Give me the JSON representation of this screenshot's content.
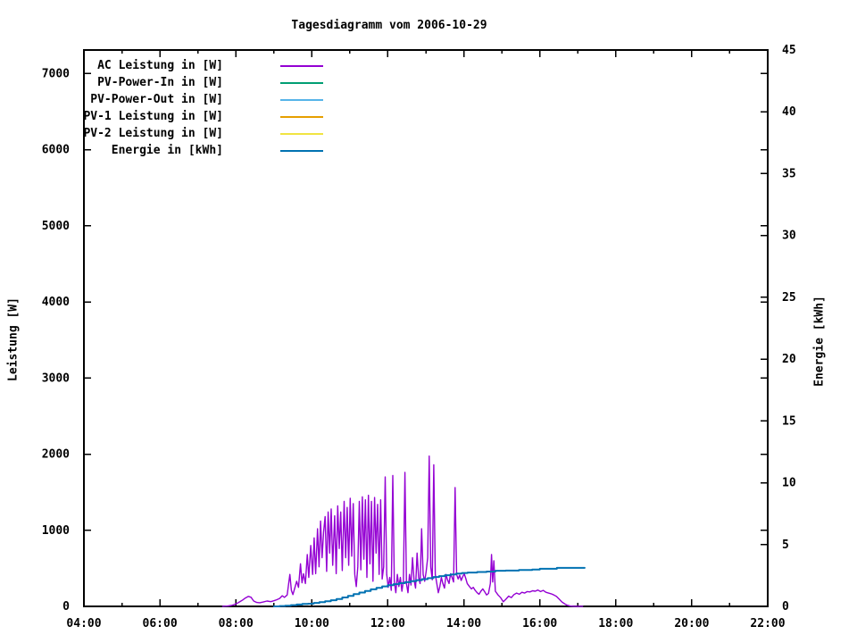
{
  "chart_data": {
    "type": "line",
    "title": "Tagesdiagramm vom 2006-10-29",
    "xlabel": "",
    "ylabel": "Leistung [W]",
    "y2label": "Energie [kWh]",
    "background_color": "#ffffff",
    "text_color": "#000000",
    "grid": false,
    "legend_position": "top-left-inside",
    "x_range_hours": [
      4,
      22
    ],
    "x_tick_hours": [
      4,
      6,
      8,
      10,
      12,
      14,
      16,
      18,
      20,
      22
    ],
    "x_tick_labels": [
      "04:00",
      "06:00",
      "08:00",
      "10:00",
      "12:00",
      "14:00",
      "16:00",
      "18:00",
      "20:00",
      "22:00"
    ],
    "x_minor_tick_hours": [
      5,
      7,
      9,
      11,
      13,
      15,
      17,
      19,
      21
    ],
    "y_range": [
      0,
      7310
    ],
    "y_ticks": [
      0,
      1000,
      2000,
      3000,
      4000,
      5000,
      6000,
      7000
    ],
    "y2_range": [
      0,
      45
    ],
    "y2_ticks": [
      0,
      5,
      10,
      15,
      20,
      25,
      30,
      35,
      40,
      45
    ],
    "series": [
      {
        "name": "AC Leistung in [W]",
        "color": "#9400d3",
        "axis": "y1",
        "style": "line",
        "points": [
          [
            7.65,
            0
          ],
          [
            7.72,
            2
          ],
          [
            7.8,
            6
          ],
          [
            7.88,
            12
          ],
          [
            7.95,
            22
          ],
          [
            8.02,
            38
          ],
          [
            8.1,
            60
          ],
          [
            8.18,
            85
          ],
          [
            8.25,
            110
          ],
          [
            8.33,
            132
          ],
          [
            8.4,
            120
          ],
          [
            8.47,
            70
          ],
          [
            8.55,
            52
          ],
          [
            8.63,
            48
          ],
          [
            8.72,
            58
          ],
          [
            8.82,
            70
          ],
          [
            8.92,
            62
          ],
          [
            9.0,
            74
          ],
          [
            9.08,
            88
          ],
          [
            9.15,
            105
          ],
          [
            9.22,
            140
          ],
          [
            9.28,
            118
          ],
          [
            9.35,
            150
          ],
          [
            9.42,
            420
          ],
          [
            9.46,
            210
          ],
          [
            9.5,
            155
          ],
          [
            9.55,
            240
          ],
          [
            9.6,
            330
          ],
          [
            9.65,
            250
          ],
          [
            9.7,
            560
          ],
          [
            9.74,
            310
          ],
          [
            9.78,
            430
          ],
          [
            9.83,
            300
          ],
          [
            9.88,
            680
          ],
          [
            9.92,
            380
          ],
          [
            9.97,
            800
          ],
          [
            10.02,
            420
          ],
          [
            10.06,
            900
          ],
          [
            10.1,
            430
          ],
          [
            10.15,
            1020
          ],
          [
            10.19,
            520
          ],
          [
            10.23,
            1120
          ],
          [
            10.27,
            640
          ],
          [
            10.31,
            980
          ],
          [
            10.35,
            1180
          ],
          [
            10.39,
            460
          ],
          [
            10.43,
            1240
          ],
          [
            10.47,
            700
          ],
          [
            10.51,
            1280
          ],
          [
            10.55,
            540
          ],
          [
            10.6,
            1190
          ],
          [
            10.64,
            430
          ],
          [
            10.68,
            1320
          ],
          [
            10.72,
            760
          ],
          [
            10.76,
            1240
          ],
          [
            10.8,
            470
          ],
          [
            10.85,
            1380
          ],
          [
            10.89,
            640
          ],
          [
            10.93,
            1300
          ],
          [
            10.97,
            540
          ],
          [
            11.01,
            1420
          ],
          [
            11.05,
            660
          ],
          [
            11.09,
            1350
          ],
          [
            11.13,
            420
          ],
          [
            11.17,
            260
          ],
          [
            11.21,
            520
          ],
          [
            11.25,
            1380
          ],
          [
            11.29,
            480
          ],
          [
            11.33,
            1440
          ],
          [
            11.37,
            620
          ],
          [
            11.41,
            1400
          ],
          [
            11.45,
            380
          ],
          [
            11.49,
            1460
          ],
          [
            11.53,
            560
          ],
          [
            11.57,
            1380
          ],
          [
            11.61,
            330
          ],
          [
            11.65,
            1430
          ],
          [
            11.69,
            700
          ],
          [
            11.73,
            1340
          ],
          [
            11.77,
            420
          ],
          [
            11.81,
            1400
          ],
          [
            11.85,
            360
          ],
          [
            11.89,
            520
          ],
          [
            11.93,
            1700
          ],
          [
            11.97,
            420
          ],
          [
            12.01,
            250
          ],
          [
            12.05,
            380
          ],
          [
            12.09,
            210
          ],
          [
            12.13,
            1720
          ],
          [
            12.17,
            330
          ],
          [
            12.21,
            180
          ],
          [
            12.25,
            420
          ],
          [
            12.29,
            260
          ],
          [
            12.33,
            380
          ],
          [
            12.37,
            200
          ],
          [
            12.41,
            340
          ],
          [
            12.45,
            1760
          ],
          [
            12.49,
            300
          ],
          [
            12.53,
            180
          ],
          [
            12.57,
            420
          ],
          [
            12.61,
            280
          ],
          [
            12.65,
            640
          ],
          [
            12.69,
            350
          ],
          [
            12.73,
            240
          ],
          [
            12.77,
            700
          ],
          [
            12.81,
            380
          ],
          [
            12.85,
            300
          ],
          [
            12.89,
            1020
          ],
          [
            12.93,
            420
          ],
          [
            12.97,
            330
          ],
          [
            13.01,
            460
          ],
          [
            13.05,
            640
          ],
          [
            13.09,
            1975
          ],
          [
            13.13,
            520
          ],
          [
            13.17,
            350
          ],
          [
            13.21,
            1860
          ],
          [
            13.25,
            420
          ],
          [
            13.29,
            300
          ],
          [
            13.33,
            180
          ],
          [
            13.37,
            260
          ],
          [
            13.41,
            380
          ],
          [
            13.45,
            300
          ],
          [
            13.49,
            240
          ],
          [
            13.53,
            420
          ],
          [
            13.57,
            350
          ],
          [
            13.61,
            300
          ],
          [
            13.65,
            430
          ],
          [
            13.69,
            380
          ],
          [
            13.73,
            320
          ],
          [
            13.77,
            1560
          ],
          [
            13.81,
            420
          ],
          [
            13.85,
            360
          ],
          [
            13.89,
            410
          ],
          [
            13.93,
            340
          ],
          [
            13.97,
            390
          ],
          [
            14.01,
            430
          ],
          [
            14.05,
            370
          ],
          [
            14.09,
            300
          ],
          [
            14.15,
            260
          ],
          [
            14.2,
            230
          ],
          [
            14.25,
            250
          ],
          [
            14.3,
            210
          ],
          [
            14.35,
            180
          ],
          [
            14.4,
            160
          ],
          [
            14.45,
            200
          ],
          [
            14.5,
            230
          ],
          [
            14.55,
            190
          ],
          [
            14.6,
            150
          ],
          [
            14.65,
            170
          ],
          [
            14.7,
            300
          ],
          [
            14.73,
            680
          ],
          [
            14.76,
            320
          ],
          [
            14.79,
            600
          ],
          [
            14.83,
            200
          ],
          [
            14.9,
            150
          ],
          [
            14.97,
            115
          ],
          [
            15.04,
            60
          ],
          [
            15.11,
            95
          ],
          [
            15.18,
            135
          ],
          [
            15.25,
            115
          ],
          [
            15.32,
            155
          ],
          [
            15.39,
            175
          ],
          [
            15.46,
            160
          ],
          [
            15.53,
            185
          ],
          [
            15.6,
            175
          ],
          [
            15.67,
            195
          ],
          [
            15.74,
            190
          ],
          [
            15.81,
            205
          ],
          [
            15.88,
            200
          ],
          [
            15.95,
            215
          ],
          [
            16.02,
            195
          ],
          [
            16.09,
            210
          ],
          [
            16.16,
            185
          ],
          [
            16.23,
            175
          ],
          [
            16.3,
            165
          ],
          [
            16.37,
            150
          ],
          [
            16.44,
            130
          ],
          [
            16.51,
            95
          ],
          [
            16.58,
            60
          ],
          [
            16.65,
            35
          ],
          [
            16.72,
            15
          ],
          [
            16.8,
            5
          ],
          [
            16.9,
            0
          ],
          [
            17.13,
            0
          ]
        ]
      },
      {
        "name": "PV-Power-In in [W]",
        "color": "#009e73",
        "axis": "y1",
        "style": "line",
        "points": []
      },
      {
        "name": "PV-Power-Out in [W]",
        "color": "#56b4e9",
        "axis": "y1",
        "style": "line",
        "points": []
      },
      {
        "name": "PV-1 Leistung in [W]",
        "color": "#e69f00",
        "axis": "y1",
        "style": "line",
        "points": []
      },
      {
        "name": "PV-2 Leistung in [W]",
        "color": "#f0e442",
        "axis": "y1",
        "style": "line",
        "points": []
      },
      {
        "name": "Energie in [kWh]",
        "color": "#0072b2",
        "axis": "y2",
        "style": "step",
        "points": [
          [
            9.0,
            0
          ],
          [
            9.15,
            0.03
          ],
          [
            9.3,
            0.06
          ],
          [
            9.45,
            0.1
          ],
          [
            9.6,
            0.15
          ],
          [
            9.75,
            0.2
          ],
          [
            9.9,
            0.22
          ],
          [
            10.05,
            0.28
          ],
          [
            10.2,
            0.35
          ],
          [
            10.35,
            0.42
          ],
          [
            10.5,
            0.5
          ],
          [
            10.65,
            0.6
          ],
          [
            10.8,
            0.72
          ],
          [
            10.95,
            0.85
          ],
          [
            11.1,
            1.0
          ],
          [
            11.25,
            1.12
          ],
          [
            11.4,
            1.25
          ],
          [
            11.55,
            1.38
          ],
          [
            11.7,
            1.5
          ],
          [
            11.85,
            1.62
          ],
          [
            12.0,
            1.72
          ],
          [
            12.15,
            1.8
          ],
          [
            12.3,
            1.88
          ],
          [
            12.45,
            1.96
          ],
          [
            12.6,
            2.04
          ],
          [
            12.75,
            2.12
          ],
          [
            12.9,
            2.2
          ],
          [
            13.05,
            2.28
          ],
          [
            13.2,
            2.38
          ],
          [
            13.35,
            2.45
          ],
          [
            13.5,
            2.52
          ],
          [
            13.65,
            2.58
          ],
          [
            13.8,
            2.65
          ],
          [
            13.95,
            2.7
          ],
          [
            14.1,
            2.74
          ],
          [
            14.35,
            2.78
          ],
          [
            14.6,
            2.82
          ],
          [
            14.83,
            2.88
          ],
          [
            15.1,
            2.9
          ],
          [
            15.45,
            2.94
          ],
          [
            15.8,
            2.98
          ],
          [
            16.0,
            3.04
          ],
          [
            16.45,
            3.11
          ],
          [
            17.18,
            3.11
          ]
        ]
      }
    ]
  }
}
